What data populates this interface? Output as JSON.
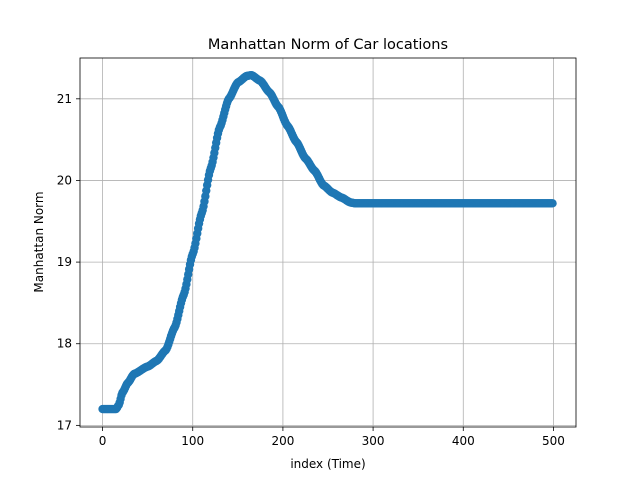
{
  "chart_data": {
    "type": "scatter",
    "title": "Manhattan Norm of Car locations",
    "xlabel": "index (Time)",
    "ylabel": "Manhattan Norm",
    "xlim": [
      -25,
      525
    ],
    "ylim": [
      16.98,
      21.5
    ],
    "xticks": [
      0,
      100,
      200,
      300,
      400,
      500
    ],
    "yticks": [
      17,
      18,
      19,
      20,
      21
    ],
    "grid": true,
    "marker_color": "#1f77b4",
    "x_range": [
      0,
      499
    ],
    "curve_anchors": [
      [
        0,
        17.2
      ],
      [
        15,
        17.2
      ],
      [
        18,
        17.25
      ],
      [
        22,
        17.4
      ],
      [
        28,
        17.52
      ],
      [
        35,
        17.63
      ],
      [
        50,
        17.72
      ],
      [
        60,
        17.79
      ],
      [
        70,
        17.92
      ],
      [
        80,
        18.2
      ],
      [
        90,
        18.6
      ],
      [
        100,
        19.1
      ],
      [
        110,
        19.6
      ],
      [
        120,
        20.15
      ],
      [
        130,
        20.65
      ],
      [
        140,
        21.0
      ],
      [
        150,
        21.2
      ],
      [
        160,
        21.28
      ],
      [
        165,
        21.29
      ],
      [
        175,
        21.22
      ],
      [
        185,
        21.08
      ],
      [
        195,
        20.9
      ],
      [
        205,
        20.67
      ],
      [
        215,
        20.47
      ],
      [
        225,
        20.27
      ],
      [
        235,
        20.12
      ],
      [
        245,
        19.94
      ],
      [
        255,
        19.85
      ],
      [
        265,
        19.79
      ],
      [
        275,
        19.73
      ],
      [
        280,
        19.72
      ],
      [
        499,
        19.72
      ]
    ]
  }
}
